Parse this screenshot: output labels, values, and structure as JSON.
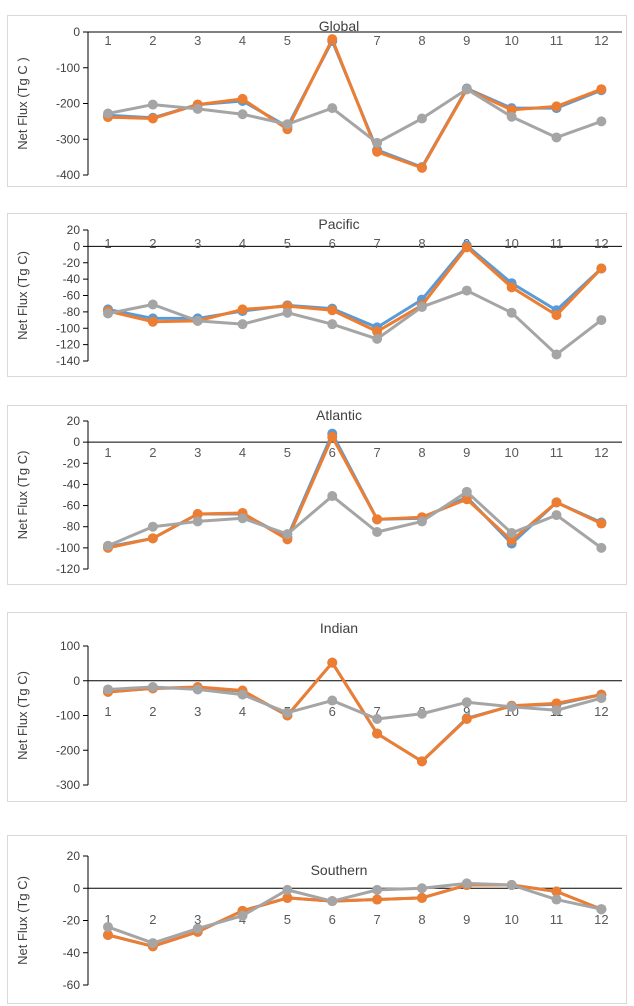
{
  "chart_data": [
    {
      "type": "line",
      "title": "Global",
      "ylabel": "Net Flux (Tg C )",
      "categories": [
        "1",
        "2",
        "3",
        "4",
        "5",
        "6",
        "7",
        "8",
        "9",
        "10",
        "11",
        "12"
      ],
      "ylim": [
        -400,
        0
      ],
      "yticks": [
        0,
        -100,
        -200,
        -300,
        -400
      ],
      "series": [
        {
          "color": "#5b9bd5",
          "values": [
            -233,
            -240,
            -203,
            -193,
            -265,
            -25,
            -330,
            -378,
            -158,
            -213,
            -213,
            -163
          ]
        },
        {
          "color": "#ed7d31",
          "values": [
            -238,
            -242,
            -203,
            -187,
            -272,
            -20,
            -335,
            -380,
            -160,
            -218,
            -208,
            -160
          ]
        },
        {
          "color": "#a5a5a5",
          "values": [
            -228,
            -203,
            -215,
            -230,
            -258,
            -213,
            -310,
            -242,
            -160,
            -237,
            -295,
            -250
          ]
        }
      ]
    },
    {
      "type": "line",
      "title": "Pacific",
      "ylabel": "Net Flux (Tg C)",
      "categories": [
        "1",
        "2",
        "3",
        "4",
        "5",
        "6",
        "7",
        "8",
        "9",
        "10",
        "11",
        "12"
      ],
      "ylim": [
        -140,
        20
      ],
      "yticks": [
        20,
        0,
        -20,
        -40,
        -60,
        -80,
        -100,
        -120,
        -140
      ],
      "series": [
        {
          "color": "#5b9bd5",
          "values": [
            -77,
            -88,
            -88,
            -79,
            -72,
            -76,
            -99,
            -65,
            1,
            -45,
            -78,
            -27
          ]
        },
        {
          "color": "#ed7d31",
          "values": [
            -79,
            -92,
            -91,
            -77,
            -73,
            -78,
            -104,
            -72,
            -1,
            -50,
            -84,
            -27
          ]
        },
        {
          "color": "#a5a5a5",
          "values": [
            -82,
            -71,
            -91,
            -95,
            -81,
            -95,
            -113,
            -74,
            -54,
            -81,
            -132,
            -90
          ]
        }
      ]
    },
    {
      "type": "line",
      "title": "Atlantic",
      "ylabel": "Net Flux (Tg C)",
      "categories": [
        "1",
        "2",
        "3",
        "4",
        "5",
        "6",
        "7",
        "8",
        "9",
        "10",
        "11",
        "12"
      ],
      "ylim": [
        -120,
        20
      ],
      "yticks": [
        20,
        0,
        -20,
        -40,
        -60,
        -80,
        -100,
        -120
      ],
      "series": [
        {
          "color": "#5b9bd5",
          "values": [
            -99,
            -91,
            -68,
            -68,
            -90,
            8,
            -73,
            -72,
            -52,
            -96,
            -57,
            -76
          ]
        },
        {
          "color": "#ed7d31",
          "values": [
            -100,
            -91,
            -68,
            -67,
            -92,
            5,
            -73,
            -71,
            -54,
            -93,
            -57,
            -77
          ]
        },
        {
          "color": "#a5a5a5",
          "values": [
            -98,
            -80,
            -75,
            -72,
            -87,
            -51,
            -85,
            -75,
            -47,
            -86,
            -69,
            -100
          ]
        }
      ]
    },
    {
      "type": "line",
      "title": "Indian",
      "ylabel": "Net Flux (Tg C)",
      "categories": [
        "1",
        "2",
        "3",
        "4",
        "5",
        "6",
        "7",
        "8",
        "9",
        "10",
        "11",
        "12"
      ],
      "ylim": [
        -300,
        100
      ],
      "yticks": [
        100,
        0,
        -100,
        -200,
        -300
      ],
      "series": [
        {
          "color": "#5b9bd5",
          "values": [
            -32,
            -22,
            -20,
            -30,
            -100,
            52,
            -152,
            -232,
            -108,
            -72,
            -68,
            -40
          ]
        },
        {
          "color": "#ed7d31",
          "values": [
            -32,
            -22,
            -18,
            -28,
            -100,
            52,
            -152,
            -232,
            -110,
            -72,
            -65,
            -40
          ]
        },
        {
          "color": "#a5a5a5",
          "values": [
            -25,
            -18,
            -25,
            -40,
            -92,
            -57,
            -110,
            -95,
            -62,
            -75,
            -85,
            -50
          ]
        }
      ]
    },
    {
      "type": "line",
      "title": "Southern",
      "ylabel": "Net Flux (Tg C)",
      "categories": [
        "1",
        "2",
        "3",
        "4",
        "5",
        "6",
        "7",
        "8",
        "9",
        "10",
        "11",
        "12"
      ],
      "ylim": [
        -60,
        20
      ],
      "yticks": [
        20,
        0,
        -20,
        -40,
        -60
      ],
      "series": [
        {
          "color": "#5b9bd5",
          "values": [
            -29,
            -36,
            -27,
            -14,
            -6,
            -8,
            -7,
            -6,
            2,
            2,
            -2,
            -13
          ]
        },
        {
          "color": "#ed7d31",
          "values": [
            -29,
            -36,
            -27,
            -14,
            -6,
            -8,
            -7,
            -6,
            2,
            2,
            -2,
            -13
          ]
        },
        {
          "color": "#a5a5a5",
          "values": [
            -24,
            -34,
            -25,
            -17,
            -1,
            -8,
            -1,
            0,
            3,
            2,
            -7,
            -13
          ]
        }
      ]
    }
  ]
}
